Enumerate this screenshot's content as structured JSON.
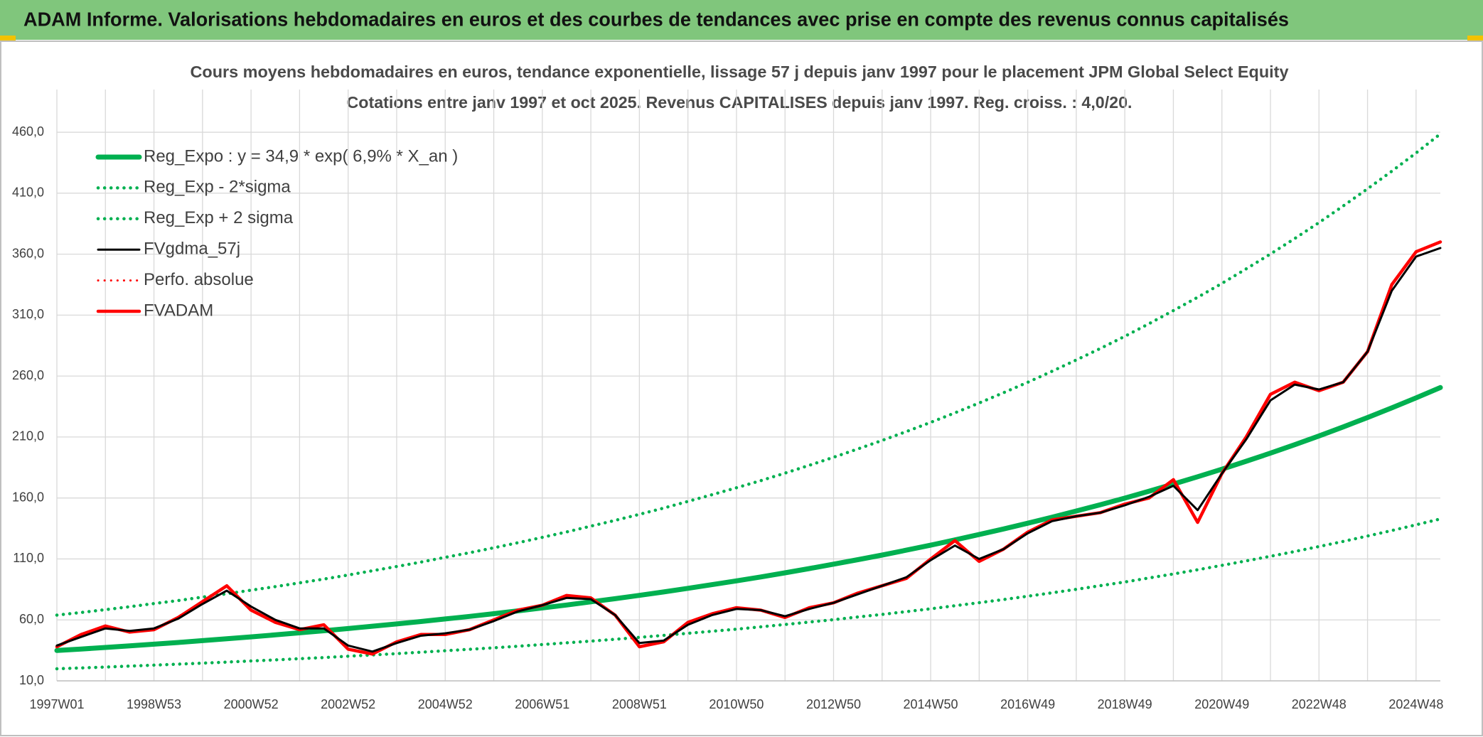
{
  "header": {
    "title": "ADAM Informe. Valorisations hebdomadaires en euros et des courbes de tendances avec prise en compte des revenus connus capitalisés"
  },
  "chart_data": {
    "type": "line",
    "title": "Cours moyens hebdomadaires en euros, tendance exponentielle, lissage 57 j depuis janv 1997 pour le placement JPM Global Select Equity",
    "subtitle": "Cotations entre janv 1997 et oct 2025. Revenus CAPITALISES depuis janv 1997. Reg. croiss. : 4,0/20.",
    "categories": [
      "1997W01",
      null,
      null,
      null,
      "1998W53",
      null,
      null,
      null,
      "2000W52",
      null,
      null,
      null,
      "2002W52",
      null,
      null,
      null,
      "2004W52",
      null,
      null,
      null,
      "2006W51",
      null,
      null,
      null,
      "2008W51",
      null,
      null,
      null,
      "2010W50",
      null,
      null,
      null,
      "2012W50",
      null,
      null,
      null,
      "2014W50",
      null,
      null,
      null,
      "2016W49",
      null,
      null,
      null,
      "2018W49",
      null,
      null,
      null,
      "2020W49",
      null,
      null,
      null,
      "2022W48",
      null,
      null,
      null,
      "2024W48",
      null
    ],
    "ylim": [
      10,
      495
    ],
    "yticks": [
      {
        "value": 10,
        "label": "10,0"
      },
      {
        "value": 60,
        "label": "60,0"
      },
      {
        "value": 110,
        "label": "110,0"
      },
      {
        "value": 160,
        "label": "160,0"
      },
      {
        "value": 210,
        "label": "210,0"
      },
      {
        "value": 260,
        "label": "260,0"
      },
      {
        "value": 310,
        "label": "310,0"
      },
      {
        "value": 360,
        "label": "360,0"
      },
      {
        "value": 410,
        "label": "410,0"
      },
      {
        "value": 460,
        "label": "460,0"
      }
    ],
    "grid": true,
    "legend": "top-left",
    "series": [
      {
        "name": "Reg_Expo : y = 34,9 * exp( 6,9% *  X_an )",
        "color": "#00b050",
        "style": "solid",
        "values": [
          34.9,
          36.1,
          37.4,
          38.7,
          40.1,
          41.5,
          43.0,
          44.5,
          46.1,
          47.7,
          49.4,
          51.1,
          52.9,
          54.8,
          56.7,
          58.7,
          60.8,
          62.9,
          65.1,
          67.4,
          69.8,
          72.2,
          74.8,
          77.4,
          80.1,
          82.9,
          85.9,
          88.9,
          92.0,
          95.2,
          98.6,
          102.1,
          105.7,
          109.4,
          113.2,
          117.2,
          121.3,
          125.6,
          130.0,
          134.6,
          139.3,
          144.2,
          149.3,
          154.5,
          159.9,
          165.6,
          171.4,
          177.4,
          183.6,
          190.1,
          196.8,
          203.7,
          210.9,
          218.3,
          226.0,
          233.9,
          242.1,
          250.6
        ]
      },
      {
        "name": "Reg_Exp - 2*sigma",
        "color": "#00b050",
        "style": "dotted",
        "values": [
          19.9,
          20.6,
          21.3,
          22.1,
          22.9,
          23.7,
          24.5,
          25.4,
          26.3,
          27.2,
          28.2,
          29.1,
          30.2,
          31.2,
          32.3,
          33.5,
          34.7,
          35.9,
          37.1,
          38.4,
          39.8,
          41.2,
          42.6,
          44.1,
          45.7,
          47.3,
          49.0,
          50.7,
          52.4,
          54.3,
          56.2,
          58.2,
          60.2,
          62.4,
          64.5,
          66.8,
          69.1,
          71.6,
          74.1,
          76.7,
          79.4,
          82.2,
          85.1,
          88.1,
          91.1,
          94.4,
          97.7,
          101.1,
          104.7,
          108.4,
          112.2,
          116.1,
          120.2,
          124.4,
          128.8,
          133.3,
          138.0,
          142.8
        ]
      },
      {
        "name": "Reg_Exp + 2 sigma",
        "color": "#00b050",
        "style": "dotted",
        "values": [
          63.9,
          66.1,
          68.4,
          70.8,
          73.4,
          75.9,
          78.7,
          81.4,
          84.4,
          87.3,
          90.4,
          93.5,
          96.8,
          100.3,
          103.8,
          107.4,
          111.3,
          115.1,
          119.1,
          123.3,
          127.7,
          132.1,
          136.9,
          141.6,
          146.6,
          151.7,
          157.2,
          162.7,
          168.4,
          174.2,
          180.4,
          186.8,
          193.4,
          200.2,
          207.2,
          214.5,
          222.0,
          229.8,
          237.9,
          246.3,
          254.9,
          263.9,
          273.2,
          282.7,
          292.6,
          303.0,
          313.7,
          324.6,
          336.0,
          347.9,
          360.1,
          372.8,
          385.9,
          399.5,
          413.6,
          428.0,
          443.0,
          458.6
        ]
      },
      {
        "name": "FVgdma_57j",
        "color": "#000000",
        "style": "solid",
        "values": [
          39,
          46,
          53,
          51,
          53,
          61,
          73,
          84,
          71,
          60,
          53,
          53,
          39,
          34,
          41,
          47,
          49,
          52,
          59,
          67,
          72,
          78,
          77,
          64,
          41,
          43,
          56,
          64,
          69,
          68,
          63,
          69,
          74,
          81,
          88,
          95,
          109,
          121,
          110,
          118,
          131,
          141,
          145,
          148,
          154,
          161,
          170,
          150,
          180,
          208,
          240,
          253,
          249,
          255,
          280,
          330,
          358,
          365
        ]
      },
      {
        "name": "Perfo. absolue",
        "color": "#ff0000",
        "style": "dotted",
        "values": [
          38,
          48,
          55,
          50,
          52,
          62,
          75,
          88,
          68,
          58,
          52,
          56,
          36,
          32,
          42,
          48,
          48,
          52,
          60,
          68,
          72,
          80,
          78,
          64,
          38,
          42,
          58,
          65,
          70,
          68,
          62,
          70,
          74,
          82,
          88,
          94,
          110,
          125,
          108,
          118,
          132,
          142,
          145,
          148,
          155,
          160,
          175,
          140,
          180,
          210,
          245,
          255,
          248,
          255,
          280,
          335,
          362,
          370
        ]
      },
      {
        "name": "FVADAM",
        "color": "#ff0000",
        "style": "solid",
        "values": [
          38,
          48,
          55,
          50,
          52,
          62,
          75,
          88,
          68,
          58,
          52,
          56,
          36,
          32,
          42,
          48,
          48,
          52,
          60,
          68,
          72,
          80,
          78,
          64,
          38,
          42,
          58,
          65,
          70,
          68,
          62,
          70,
          74,
          82,
          88,
          94,
          110,
          125,
          108,
          118,
          132,
          142,
          145,
          148,
          155,
          160,
          175,
          140,
          180,
          210,
          245,
          255,
          248,
          255,
          280,
          335,
          362,
          370
        ]
      }
    ]
  }
}
